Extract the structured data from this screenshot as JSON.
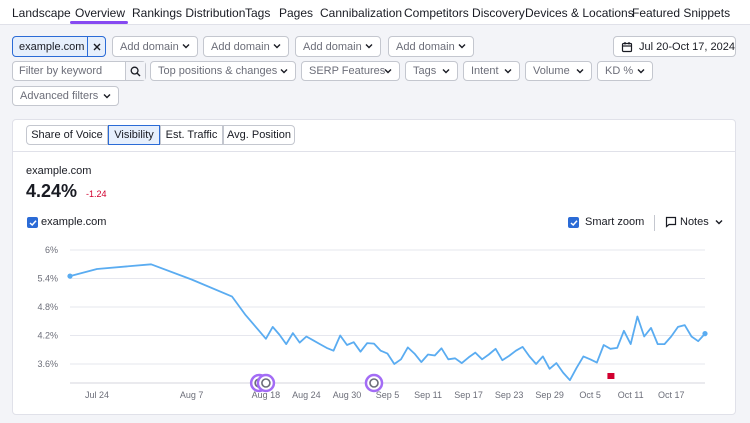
{
  "nav": {
    "tabs": [
      "Landscape",
      "Overview",
      "Rankings Distribution",
      "Tags",
      "Pages",
      "Cannibalization",
      "Competitors Discovery",
      "Devices & Locations",
      "Featured Snippets"
    ],
    "active": "Overview"
  },
  "filters": {
    "domain": "example.com",
    "add_domain": [
      "Add domain",
      "Add domain",
      "Add domain",
      "Add domain"
    ],
    "date_range": "Jul 20-Oct 17, 2024",
    "keyword_placeholder": "Filter by keyword",
    "dropdowns": [
      "Top positions & changes",
      "SERP Features",
      "Tags",
      "Intent",
      "Volume",
      "KD %"
    ],
    "advanced": "Advanced filters"
  },
  "metric_tabs": [
    "Share of Voice",
    "Visibility",
    "Est. Traffic",
    "Avg. Position"
  ],
  "metric_tab_active": "Visibility",
  "summary": {
    "domain": "example.com",
    "value": "4.24%",
    "delta": "-1.24"
  },
  "legend": {
    "series_label": "example.com",
    "smart_zoom": "Smart zoom",
    "notes": "Notes"
  },
  "colors": {
    "line": "#5aacf1",
    "accent": "#8649f1",
    "google_badge": "#a36cf5",
    "flag": "#d1002f"
  },
  "chart_data": {
    "type": "line",
    "title": "",
    "xlabel": "",
    "ylabel": "",
    "y_ticks": [
      "6%",
      "5.4%",
      "4.8%",
      "4.2%",
      "3.6%"
    ],
    "ylim": [
      3.2,
      6.0
    ],
    "x_ticks": [
      "Jul 24",
      "Aug 7",
      "Aug 18",
      "Aug 24",
      "Aug 30",
      "Sep 5",
      "Sep 11",
      "Sep 17",
      "Sep 23",
      "Sep 29",
      "Oct 5",
      "Oct 11",
      "Oct 17"
    ],
    "grid": true,
    "series": [
      {
        "name": "example.com",
        "points": [
          [
            "Jul 20",
            5.45
          ],
          [
            "Jul 24",
            5.6
          ],
          [
            "Aug 1",
            5.7
          ],
          [
            "Aug 7",
            5.38
          ],
          [
            "Aug 13",
            5.02
          ],
          [
            "Aug 15",
            4.63
          ],
          [
            "Aug 17",
            4.3
          ],
          [
            "Aug 18",
            4.13
          ],
          [
            "Aug 19",
            4.38
          ],
          [
            "Aug 20",
            4.22
          ],
          [
            "Aug 21",
            4.02
          ],
          [
            "Aug 22",
            4.25
          ],
          [
            "Aug 23",
            4.05
          ],
          [
            "Aug 24",
            4.18
          ],
          [
            "Aug 25",
            4.1
          ],
          [
            "Aug 26",
            4.02
          ],
          [
            "Aug 27",
            3.94
          ],
          [
            "Aug 28",
            3.88
          ],
          [
            "Aug 29",
            4.2
          ],
          [
            "Aug 30",
            4.0
          ],
          [
            "Aug 31",
            4.06
          ],
          [
            "Sep 1",
            3.86
          ],
          [
            "Sep 2",
            4.04
          ],
          [
            "Sep 3",
            4.03
          ],
          [
            "Sep 4",
            3.88
          ],
          [
            "Sep 5",
            3.82
          ],
          [
            "Sep 6",
            3.6
          ],
          [
            "Sep 7",
            3.7
          ],
          [
            "Sep 8",
            3.95
          ],
          [
            "Sep 9",
            3.82
          ],
          [
            "Sep 10",
            3.64
          ],
          [
            "Sep 11",
            3.8
          ],
          [
            "Sep 12",
            3.78
          ],
          [
            "Sep 13",
            3.93
          ],
          [
            "Sep 14",
            3.7
          ],
          [
            "Sep 15",
            3.72
          ],
          [
            "Sep 16",
            3.62
          ],
          [
            "Sep 17",
            3.74
          ],
          [
            "Sep 18",
            3.84
          ],
          [
            "Sep 19",
            3.7
          ],
          [
            "Sep 20",
            3.8
          ],
          [
            "Sep 21",
            3.92
          ],
          [
            "Sep 22",
            3.68
          ],
          [
            "Sep 23",
            3.77
          ],
          [
            "Sep 24",
            3.88
          ],
          [
            "Sep 25",
            3.96
          ],
          [
            "Sep 26",
            3.76
          ],
          [
            "Sep 27",
            3.6
          ],
          [
            "Sep 28",
            3.76
          ],
          [
            "Sep 29",
            3.5
          ],
          [
            "Sep 30",
            3.62
          ],
          [
            "Oct 1",
            3.42
          ],
          [
            "Oct 2",
            3.26
          ],
          [
            "Oct 3",
            3.52
          ],
          [
            "Oct 4",
            3.76
          ],
          [
            "Oct 5",
            3.7
          ],
          [
            "Oct 6",
            3.63
          ],
          [
            "Oct 7",
            4.0
          ],
          [
            "Oct 8",
            3.92
          ],
          [
            "Oct 9",
            3.94
          ],
          [
            "Oct 10",
            4.3
          ],
          [
            "Oct 11",
            4.02
          ],
          [
            "Oct 12",
            4.6
          ],
          [
            "Oct 13",
            4.18
          ],
          [
            "Oct 14",
            4.36
          ],
          [
            "Oct 15",
            4.02
          ],
          [
            "Oct 16",
            4.02
          ],
          [
            "Oct 17",
            4.18
          ],
          [
            "Oct 18",
            4.38
          ],
          [
            "Oct 19",
            4.42
          ],
          [
            "Oct 20",
            4.18
          ],
          [
            "Oct 21",
            4.08
          ],
          [
            "Oct 22",
            4.24
          ]
        ]
      }
    ],
    "annotations": [
      {
        "type": "google-update",
        "x": "Aug 17"
      },
      {
        "type": "google-update",
        "x": "Aug 18"
      },
      {
        "type": "google-update",
        "x": "Sep 3"
      },
      {
        "type": "note-flag",
        "x": "Oct 8"
      }
    ]
  }
}
